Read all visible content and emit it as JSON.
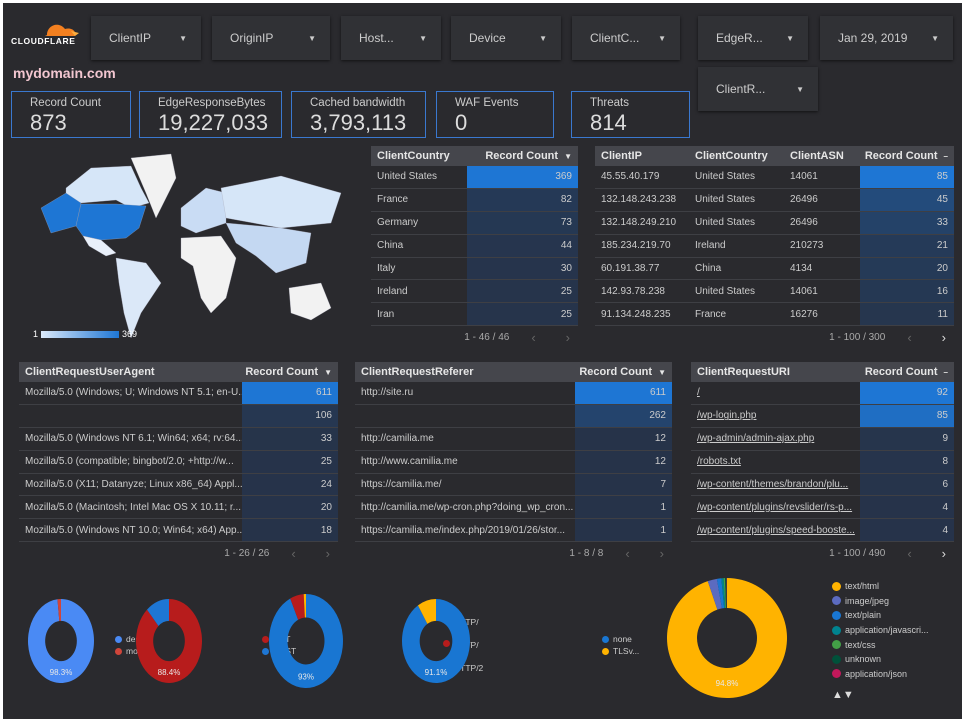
{
  "brand": {
    "logo_text": "CLOUDFLARE",
    "logo_color": "#f38020"
  },
  "title": "mydomain.com",
  "filters": [
    "ClientIP",
    "OriginIP",
    "Host...",
    "Device",
    "ClientC...",
    "EdgeR...",
    "Jan 29, 2019",
    "ClientR..."
  ],
  "scorecards": [
    {
      "label": "Record Count",
      "value": "873"
    },
    {
      "label": "EdgeResponseBytes",
      "value": "19,227,033"
    },
    {
      "label": "Cached bandwidth",
      "value": "3,793,113"
    },
    {
      "label": "WAF Events",
      "value": "0"
    },
    {
      "label": "Threats",
      "value": "814"
    }
  ],
  "map": {
    "legend_min": "1",
    "legend_max": "369",
    "highlight_color": "#1e76d4"
  },
  "tables": [
    {
      "headers": [
        "ClientCountry",
        "Record Count"
      ],
      "sort": "▼",
      "rows": [
        [
          "United States",
          "369"
        ],
        [
          "France",
          "82"
        ],
        [
          "Germany",
          "73"
        ],
        [
          "China",
          "44"
        ],
        [
          "Italy",
          "30"
        ],
        [
          "Ireland",
          "25"
        ],
        [
          "Iran",
          "25"
        ]
      ],
      "pager": "1 - 46 / 46"
    },
    {
      "headers": [
        "ClientIP",
        "ClientCountry",
        "ClientASN",
        "Record Count"
      ],
      "sort": "–",
      "rows": [
        [
          "45.55.40.179",
          "United States",
          "14061",
          "85"
        ],
        [
          "132.148.243.238",
          "United States",
          "26496",
          "45"
        ],
        [
          "132.148.249.210",
          "United States",
          "26496",
          "33"
        ],
        [
          "185.234.219.70",
          "Ireland",
          "210273",
          "21"
        ],
        [
          "60.191.38.77",
          "China",
          "4134",
          "20"
        ],
        [
          "142.93.78.238",
          "United States",
          "14061",
          "16"
        ],
        [
          "91.134.248.235",
          "France",
          "16276",
          "11"
        ]
      ],
      "pager": "1 - 100 / 300"
    },
    {
      "headers": [
        "ClientRequestUserAgent",
        "Record Count"
      ],
      "sort": "▼",
      "rows": [
        [
          "Mozilla/5.0 (Windows; U; Windows NT 5.1; en-U...",
          "611"
        ],
        [
          "",
          "106"
        ],
        [
          "Mozilla/5.0 (Windows NT 6.1; Win64; x64; rv:64....",
          "33"
        ],
        [
          "Mozilla/5.0 (compatible; bingbot/2.0; +http://w...",
          "25"
        ],
        [
          "Mozilla/5.0 (X11; Datanyze; Linux x86_64) Appl...",
          "24"
        ],
        [
          "Mozilla/5.0 (Macintosh; Intel Mac OS X 10.11; r...",
          "20"
        ],
        [
          "Mozilla/5.0 (Windows NT 10.0; Win64; x64) App...",
          "18"
        ]
      ],
      "pager": "1 - 26 / 26"
    },
    {
      "headers": [
        "ClientRequestReferer",
        "Record Count"
      ],
      "sort": "▼",
      "rows": [
        [
          "http://site.ru",
          "611"
        ],
        [
          "",
          "262"
        ],
        [
          "http://camilia.me",
          "12"
        ],
        [
          "http://www.camilia.me",
          "12"
        ],
        [
          "https://camilia.me/",
          "7"
        ],
        [
          "http://camilia.me/wp-cron.php?doing_wp_cron...",
          "1"
        ],
        [
          "https://camilia.me/index.php/2019/01/26/stor...",
          "1"
        ]
      ],
      "pager": "1 - 8 / 8"
    },
    {
      "headers": [
        "ClientRequestURI",
        "Record Count"
      ],
      "sort": "–",
      "links": true,
      "rows": [
        [
          "/",
          "92"
        ],
        [
          "/wp-login.php",
          "85"
        ],
        [
          "/wp-admin/admin-ajax.php",
          "9"
        ],
        [
          "/robots.txt",
          "8"
        ],
        [
          "/wp-content/themes/brandon/plu...",
          "6"
        ],
        [
          "/wp-content/plugins/revslider/rs-p...",
          "4"
        ],
        [
          "/wp-content/plugins/speed-booste...",
          "4"
        ]
      ],
      "pager": "1 - 100 / 490"
    }
  ],
  "chart_data": [
    {
      "type": "pie",
      "donut": true,
      "labels": [
        "deskt...",
        "mobile"
      ],
      "values": [
        98.3,
        1.7
      ],
      "colors": [
        "#4a8af4",
        "#d0453a"
      ],
      "data_label": "98.3%"
    },
    {
      "type": "pie",
      "donut": true,
      "labels": [
        "GET",
        "POST"
      ],
      "values": [
        88.4,
        11.6
      ],
      "colors": [
        "#b71c1c",
        "#1e76d4"
      ],
      "data_label": "88.4%"
    },
    {
      "type": "pie",
      "donut": true,
      "labels": [
        "HTTP/ 1.1",
        "HTTP/ 1.0",
        "HTTP/2"
      ],
      "values": [
        93,
        6,
        1
      ],
      "colors": [
        "#1976d2",
        "#b71c1c",
        "#ffb300"
      ],
      "data_label": "93%"
    },
    {
      "type": "pie",
      "donut": true,
      "labels": [
        "none",
        "TLSv..."
      ],
      "values": [
        91.1,
        8.9
      ],
      "colors": [
        "#1976d2",
        "#ffb300"
      ],
      "data_label": "91.1%"
    },
    {
      "type": "pie",
      "donut": true,
      "labels": [
        "text/html",
        "image/jpeg",
        "text/plain",
        "application/javascri...",
        "text/css",
        "unknown",
        "application/json"
      ],
      "values": [
        94.8,
        2.5,
        1.2,
        0.6,
        0.4,
        0.4,
        0.1
      ],
      "colors": [
        "#ffb300",
        "#5c6bc0",
        "#1976d2",
        "#00838f",
        "#43a047",
        "#00513a",
        "#c2185b"
      ],
      "data_label": "94.8%",
      "legend_nav": "▲▼"
    }
  ]
}
